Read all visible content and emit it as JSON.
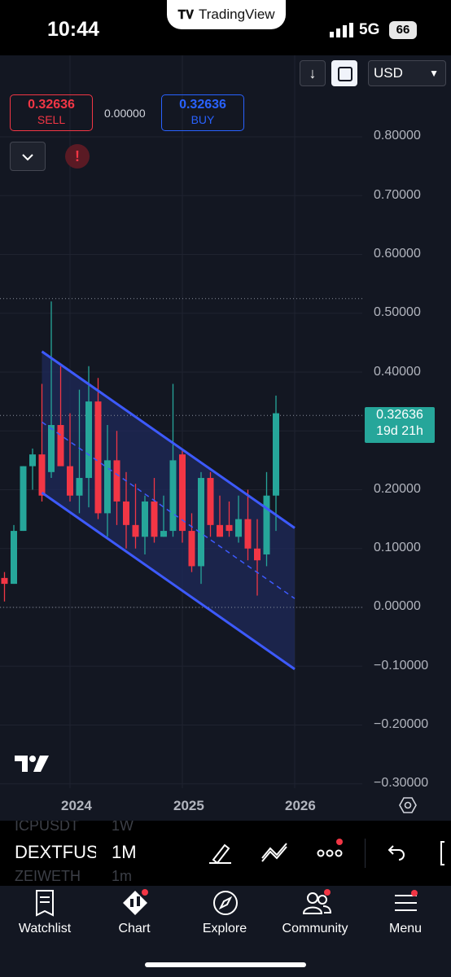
{
  "status": {
    "time": "10:44",
    "app_pill": "TradingView",
    "network": "5G",
    "battery": "66"
  },
  "toolbar": {
    "currency": "USD"
  },
  "quote": {
    "sell_price": "0.32636",
    "sell_label": "SELL",
    "spread": "0.00000",
    "buy_price": "0.32636",
    "buy_label": "BUY"
  },
  "last_price": {
    "value": "0.32636",
    "countdown": "19d 21h"
  },
  "symbols": {
    "prev": "ICPUSDT",
    "current": "DEXTFUSD",
    "next": "ZEIWETH"
  },
  "timeframes": {
    "prev": "1W",
    "current": "1M",
    "next": "1m"
  },
  "tabs": [
    "Watchlist",
    "Chart",
    "Explore",
    "Community",
    "Menu"
  ],
  "colors": {
    "up": "#26a69a",
    "down": "#f23645",
    "channel": "#3d5afe",
    "background": "#131722"
  },
  "chart_data": {
    "type": "candlestick",
    "x_ticks": [
      "2024",
      "2025",
      "2026"
    ],
    "y_ticks": [
      "0.80000",
      "0.70000",
      "0.60000",
      "0.50000",
      "0.40000",
      "0.30000",
      "0.20000",
      "0.10000",
      "0.00000",
      "−0.10000",
      "−0.20000",
      "−0.30000"
    ],
    "ylim": [
      -0.3,
      0.85
    ],
    "candles": [
      {
        "d": "2023-03",
        "o": 0.03,
        "h": 0.1,
        "l": 0.03,
        "c": 0.06
      },
      {
        "d": "2023-04",
        "o": 0.06,
        "h": 0.08,
        "l": 0.04,
        "c": 0.07
      },
      {
        "d": "2023-05",
        "o": 0.07,
        "h": 0.09,
        "l": 0.03,
        "c": 0.05
      },
      {
        "d": "2023-06",
        "o": 0.05,
        "h": 0.06,
        "l": 0.01,
        "c": 0.04
      },
      {
        "d": "2023-07",
        "o": 0.04,
        "h": 0.14,
        "l": 0.04,
        "c": 0.13
      },
      {
        "d": "2023-08",
        "o": 0.13,
        "h": 0.24,
        "l": 0.13,
        "c": 0.24
      },
      {
        "d": "2023-09",
        "o": 0.24,
        "h": 0.27,
        "l": 0.2,
        "c": 0.26
      },
      {
        "d": "2023-10",
        "o": 0.26,
        "h": 0.38,
        "l": 0.18,
        "c": 0.19
      },
      {
        "d": "2023-11",
        "o": 0.23,
        "h": 0.52,
        "l": 0.22,
        "c": 0.31
      },
      {
        "d": "2023-12",
        "o": 0.31,
        "h": 0.41,
        "l": 0.25,
        "c": 0.24
      },
      {
        "d": "2024-01",
        "o": 0.24,
        "h": 0.33,
        "l": 0.18,
        "c": 0.19
      },
      {
        "d": "2024-02",
        "o": 0.19,
        "h": 0.37,
        "l": 0.16,
        "c": 0.22
      },
      {
        "d": "2024-03",
        "o": 0.22,
        "h": 0.41,
        "l": 0.17,
        "c": 0.35
      },
      {
        "d": "2024-04",
        "o": 0.35,
        "h": 0.39,
        "l": 0.15,
        "c": 0.16
      },
      {
        "d": "2024-05",
        "o": 0.16,
        "h": 0.31,
        "l": 0.12,
        "c": 0.25
      },
      {
        "d": "2024-06",
        "o": 0.25,
        "h": 0.3,
        "l": 0.14,
        "c": 0.18
      },
      {
        "d": "2024-07",
        "o": 0.18,
        "h": 0.23,
        "l": 0.1,
        "c": 0.14
      },
      {
        "d": "2024-08",
        "o": 0.14,
        "h": 0.21,
        "l": 0.1,
        "c": 0.12
      },
      {
        "d": "2024-09",
        "o": 0.12,
        "h": 0.19,
        "l": 0.09,
        "c": 0.18
      },
      {
        "d": "2024-10",
        "o": 0.18,
        "h": 0.22,
        "l": 0.11,
        "c": 0.12
      },
      {
        "d": "2024-11",
        "o": 0.12,
        "h": 0.19,
        "l": 0.12,
        "c": 0.13
      },
      {
        "d": "2024-12",
        "o": 0.13,
        "h": 0.38,
        "l": 0.12,
        "c": 0.25
      },
      {
        "d": "2025-01",
        "o": 0.26,
        "h": 0.27,
        "l": 0.11,
        "c": 0.13
      },
      {
        "d": "2025-02",
        "o": 0.13,
        "h": 0.16,
        "l": 0.06,
        "c": 0.07
      },
      {
        "d": "2025-03",
        "o": 0.07,
        "h": 0.23,
        "l": 0.04,
        "c": 0.22
      },
      {
        "d": "2025-04",
        "o": 0.22,
        "h": 0.23,
        "l": 0.12,
        "c": 0.14
      },
      {
        "d": "2025-05",
        "o": 0.14,
        "h": 0.19,
        "l": 0.12,
        "c": 0.12
      },
      {
        "d": "2025-06",
        "o": 0.14,
        "h": 0.18,
        "l": 0.12,
        "c": 0.13
      },
      {
        "d": "2025-07",
        "o": 0.12,
        "h": 0.19,
        "l": 0.11,
        "c": 0.15
      },
      {
        "d": "2025-08",
        "o": 0.15,
        "h": 0.2,
        "l": 0.08,
        "c": 0.1
      },
      {
        "d": "2025-09",
        "o": 0.1,
        "h": 0.15,
        "l": 0.02,
        "c": 0.08
      },
      {
        "d": "2025-10",
        "o": 0.09,
        "h": 0.23,
        "l": 0.07,
        "c": 0.19
      },
      {
        "d": "2025-11",
        "o": 0.19,
        "h": 0.36,
        "l": 0.13,
        "c": 0.33
      }
    ],
    "channel": {
      "upper": [
        {
          "d": "2023-10",
          "y": 0.435
        },
        {
          "d": "2026-01",
          "y": 0.135
        }
      ],
      "middle": [
        {
          "d": "2023-10",
          "y": 0.315
        },
        {
          "d": "2026-01",
          "y": 0.015
        }
      ],
      "lower": [
        {
          "d": "2023-10",
          "y": 0.195
        },
        {
          "d": "2026-01",
          "y": -0.105
        }
      ]
    },
    "hlines": [
      0.525,
      0.32636,
      0.0
    ]
  }
}
